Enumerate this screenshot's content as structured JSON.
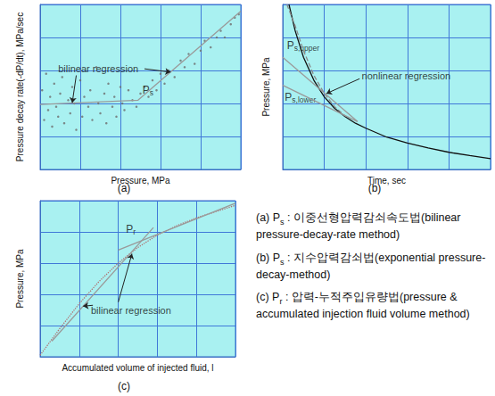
{
  "chart_data": [
    {
      "type": "scatter",
      "title": "(a)",
      "x_label": "Pressure, MPa",
      "y_label": "Pressure decay rate(-dP/dt), MPa/sec",
      "xlim": [
        0,
        5
      ],
      "ylim": [
        0,
        5
      ],
      "xticks": [
        0,
        1,
        2,
        3,
        4,
        5
      ],
      "yticks": [
        0,
        1,
        2,
        3,
        4,
        5
      ],
      "grid": true,
      "tick_labels": false,
      "series": [
        {
          "type": "scatter",
          "color": "#6e6e6e",
          "marker": "circle",
          "x": [
            0.05,
            0.1,
            0.15,
            0.2,
            0.25,
            0.3,
            0.35,
            0.4,
            0.45,
            0.5,
            0.55,
            0.6,
            0.7,
            0.75,
            0.8,
            0.85,
            0.9,
            1.0,
            1.05,
            1.1,
            1.2,
            1.25,
            1.3,
            1.4,
            1.45,
            1.5,
            1.6,
            1.65,
            1.7,
            1.8,
            1.85,
            1.9,
            2.0,
            2.05,
            2.1,
            2.2,
            2.3,
            2.4,
            2.5,
            2.6,
            2.7,
            2.8,
            2.9,
            3.0,
            3.1,
            3.2,
            3.35,
            3.5,
            3.6,
            3.7,
            3.85,
            4.0,
            4.1,
            4.25,
            4.4,
            4.5,
            4.6,
            4.75,
            4.85,
            4.95
          ],
          "values": [
            2.4,
            1.5,
            2.9,
            1.8,
            2.2,
            1.3,
            2.6,
            1.9,
            1.6,
            2.3,
            2.8,
            1.4,
            2.1,
            1.7,
            2.5,
            2.0,
            1.2,
            2.7,
            1.6,
            2.2,
            1.9,
            2.4,
            1.5,
            3.1,
            2.0,
            1.7,
            2.3,
            1.4,
            2.6,
            1.9,
            2.2,
            1.6,
            2.5,
            2.0,
            1.8,
            2.4,
            2.1,
            1.9,
            2.3,
            2.5,
            2.2,
            2.7,
            2.4,
            2.9,
            2.6,
            3.0,
            2.8,
            3.3,
            3.1,
            3.5,
            3.2,
            3.6,
            3.9,
            3.7,
            4.0,
            4.2,
            4.0,
            4.4,
            4.6,
            4.7
          ]
        },
        {
          "type": "line",
          "color": "#9a9a9a",
          "line_style": "solid",
          "x": [
            0,
            2.44,
            5
          ],
          "values": [
            1.97,
            2.1,
            4.8
          ]
        }
      ],
      "annotations": [
        {
          "text": "bilinear regression",
          "at": [
            0.45,
            3.05
          ],
          "arrows": [
            [
              [
                0.9,
                2.85
              ],
              [
                0.8,
                2.02
              ]
            ],
            [
              [
                2.6,
                3.05
              ],
              [
                3.25,
                2.95
              ]
            ]
          ]
        },
        {
          "text": "P",
          "subscript": "s",
          "at": [
            2.55,
            2.4
          ],
          "arrows": []
        }
      ]
    },
    {
      "type": "line",
      "title": "(b)",
      "x_label": "Time, sec",
      "y_label": "Pressure, MPa",
      "xlim": [
        0,
        5
      ],
      "ylim": [
        0,
        5
      ],
      "xticks": [
        0,
        1,
        2,
        3,
        4,
        5
      ],
      "yticks": [
        0,
        1,
        2,
        3,
        4,
        5
      ],
      "grid": true,
      "tick_labels": false,
      "series": [
        {
          "type": "line",
          "color": "#111111",
          "line_style": "solid",
          "x": [
            0.15,
            0.3,
            0.5,
            0.75,
            1.0,
            1.25,
            1.5,
            1.75,
            2.0,
            2.5,
            3.0,
            3.5,
            4.0,
            4.5,
            5.0
          ],
          "values": [
            5.0,
            4.2,
            3.4,
            2.7,
            2.2,
            1.85,
            1.6,
            1.4,
            1.25,
            0.98,
            0.8,
            0.65,
            0.52,
            0.42,
            0.33
          ]
        },
        {
          "type": "line",
          "color": "#8a8a8a",
          "line_style": "dashed",
          "x": [
            0.1,
            0.3,
            0.5,
            0.75,
            1.0,
            1.25,
            1.5
          ],
          "values": [
            5.0,
            4.35,
            3.6,
            2.85,
            2.3,
            1.9,
            1.62
          ]
        },
        {
          "type": "line",
          "color": "#9a9a9a",
          "line_style": "solid",
          "x": [
            0,
            1.8
          ],
          "values": [
            3.4,
            1.45
          ]
        },
        {
          "type": "line",
          "color": "#9a9a9a",
          "line_style": "solid",
          "x": [
            0,
            1.8
          ],
          "values": [
            2.55,
            1.45
          ]
        }
      ],
      "annotations": [
        {
          "text": "P",
          "subscript": "s,upper",
          "at": [
            0.1,
            3.75
          ],
          "arrows": []
        },
        {
          "text": "P",
          "subscript": "s,lower",
          "at": [
            0.05,
            2.2
          ],
          "arrows": []
        },
        {
          "text": "nonlinear regression",
          "at": [
            1.9,
            2.85
          ],
          "arrows": [
            [
              [
                1.85,
                2.75
              ],
              [
                1.05,
                2.3
              ]
            ]
          ]
        }
      ]
    },
    {
      "type": "line",
      "title": "(c)",
      "x_label": "Accumulated volume of injected fluid, l",
      "y_label": "Pressure, MPa",
      "xlim": [
        0,
        5
      ],
      "ylim": [
        0,
        5
      ],
      "xticks": [
        0,
        1,
        2,
        3,
        4,
        5
      ],
      "yticks": [
        0,
        1,
        2,
        3,
        4,
        5
      ],
      "grid": true,
      "tick_labels": false,
      "series": [
        {
          "type": "line",
          "color": "#b07070",
          "line_style": "dotted",
          "x": [
            0,
            0.5,
            1.0,
            1.5,
            2.0,
            2.5,
            3.0,
            3.5,
            4.0,
            4.5,
            5.0
          ],
          "values": [
            0.05,
            0.9,
            1.7,
            2.4,
            3.0,
            3.5,
            3.9,
            4.2,
            4.45,
            4.65,
            4.85
          ]
        },
        {
          "type": "line",
          "color": "#9a9a9a",
          "line_style": "solid",
          "x": [
            0.3,
            2.9
          ],
          "values": [
            0.5,
            4.14
          ]
        },
        {
          "type": "line",
          "color": "#9a9a9a",
          "line_style": "solid",
          "x": [
            2.0,
            5.0
          ],
          "values": [
            3.42,
            4.92
          ]
        }
      ],
      "annotations": [
        {
          "text": "P",
          "subscript": "r",
          "at": [
            2.2,
            4.1
          ],
          "arrows": []
        },
        {
          "text": "bilinear regression",
          "at": [
            1.3,
            1.5
          ],
          "arrows": [
            [
              [
                1.35,
                1.65
              ],
              [
                1.1,
                1.62
              ]
            ],
            [
              [
                2.0,
                1.75
              ],
              [
                2.35,
                3.3
              ]
            ]
          ]
        }
      ]
    }
  ],
  "notes": [
    {
      "label": "(a)",
      "symbol": {
        "text": "P",
        "subscript": "s"
      },
      "text": ": 이중선형압력감쇠속도법(bilinear pressure-decay-rate method)"
    },
    {
      "label": "(b)",
      "symbol": {
        "text": "P",
        "subscript": "s"
      },
      "text": ": 지수압력감쇠법(exponential pressure-decay-method)"
    },
    {
      "label": "(c)",
      "symbol": {
        "text": "P",
        "subscript": "r"
      },
      "text": ": 압력-누적주입유량법(pressure & accumulated injection fluid volume method)"
    }
  ]
}
